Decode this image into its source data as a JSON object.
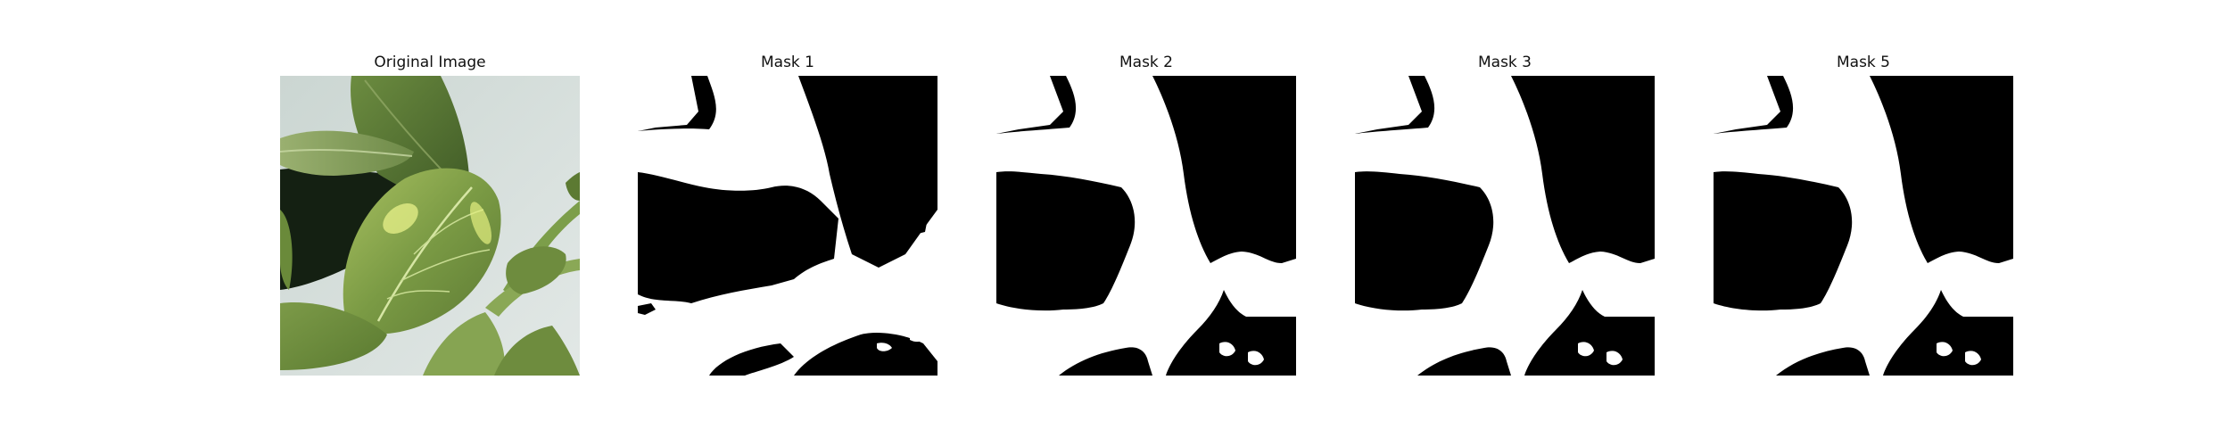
{
  "panels": [
    {
      "title": "Original Image",
      "kind": "photo"
    },
    {
      "title": "Mask 1",
      "kind": "mask",
      "variant": "noisy"
    },
    {
      "title": "Mask 2",
      "kind": "mask",
      "variant": "smooth"
    },
    {
      "title": "Mask 3",
      "kind": "mask",
      "variant": "smooth"
    },
    {
      "title": "Mask 5",
      "kind": "mask",
      "variant": "smooth"
    }
  ],
  "colors": {
    "mask_foreground": "#ffffff",
    "mask_background": "#000000"
  }
}
